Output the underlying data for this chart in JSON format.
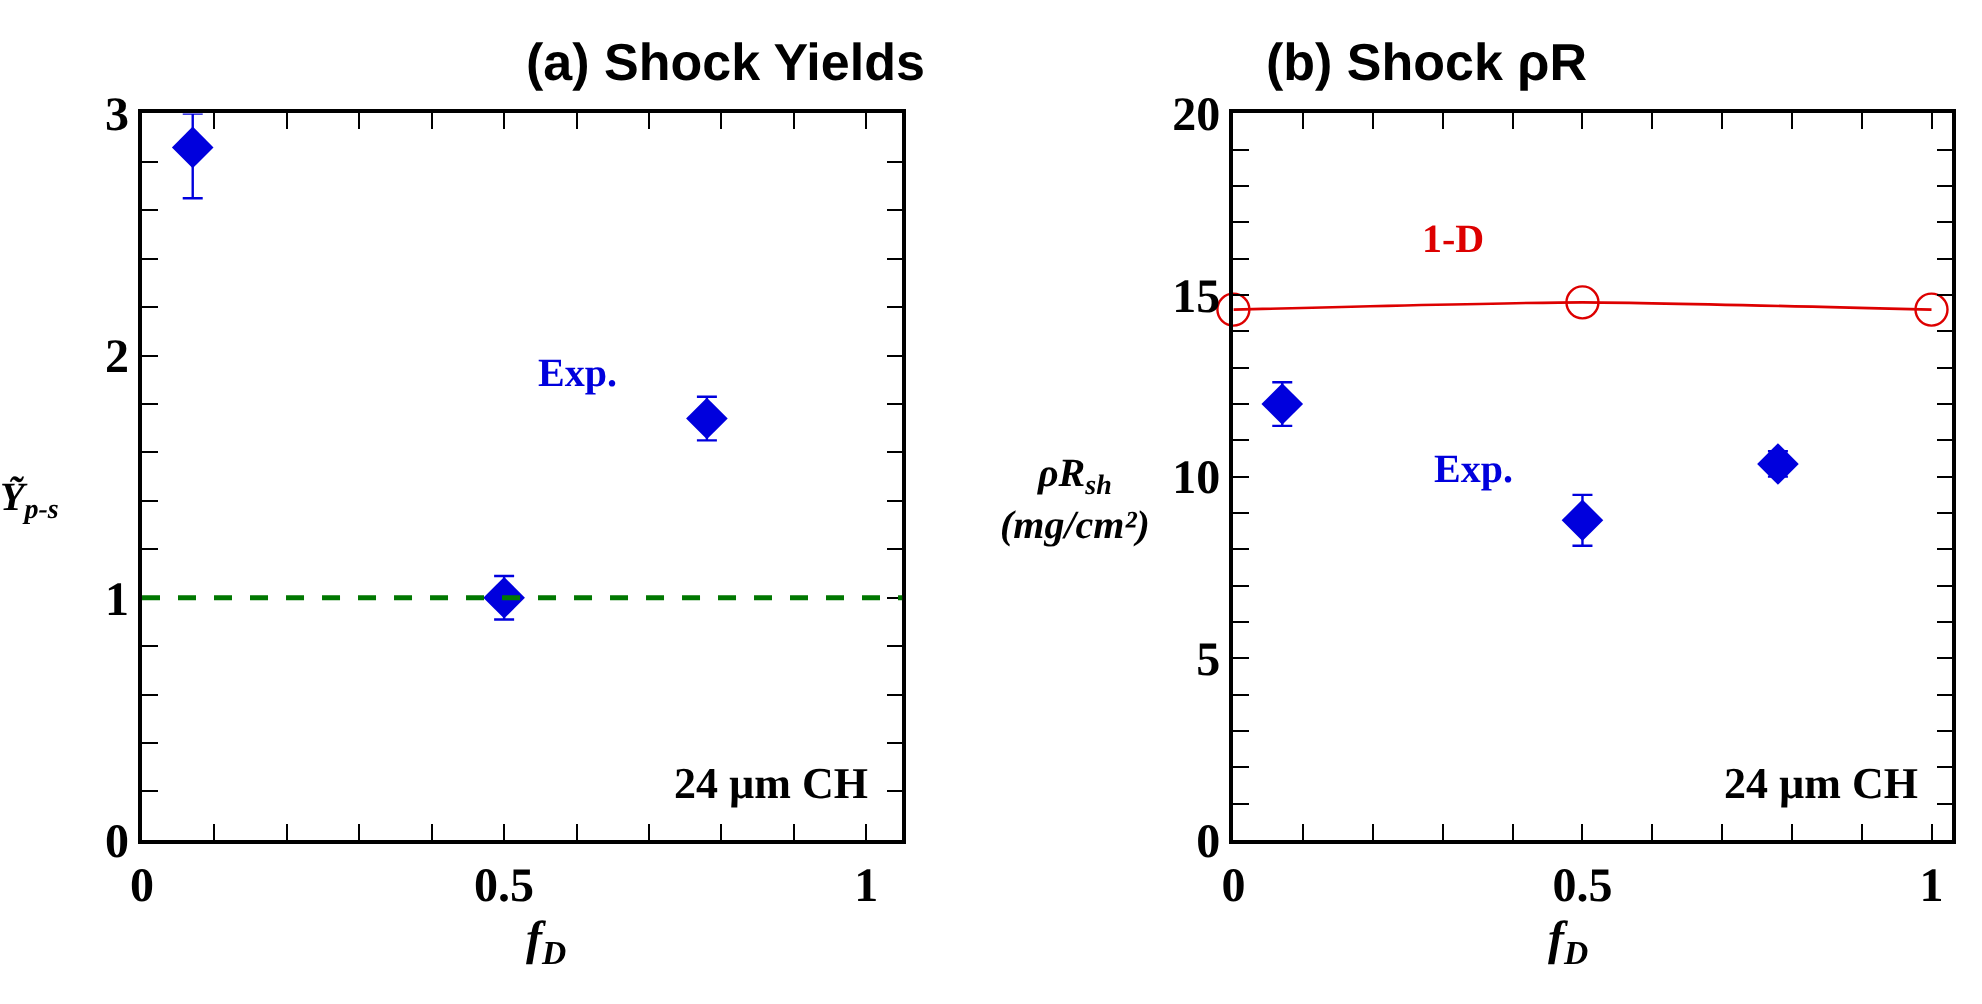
{
  "chart_data": [
    {
      "type": "scatter",
      "title": "(a) Shock Yields",
      "xlabel": "f$_{D}$",
      "ylabel": "Ỹ$_{p-s}$",
      "xlim": [
        0,
        1.05
      ],
      "xticks": [
        0,
        {
          "value": 0.1,
          "label": null
        },
        {
          "value": 0.2,
          "label": null
        },
        {
          "value": 0.3,
          "label": null
        },
        {
          "value": 0.4,
          "label": null
        },
        0.5,
        {
          "value": 0.6,
          "label": null
        },
        {
          "value": 0.7,
          "label": null
        },
        {
          "value": 0.8,
          "label": null
        },
        {
          "value": 0.9,
          "label": null
        },
        1
      ],
      "ylim": [
        0,
        3
      ],
      "yticks": [
        0,
        {
          "value": 0.2,
          "label": null
        },
        {
          "value": 0.4,
          "label": null
        },
        {
          "value": 0.6,
          "label": null
        },
        {
          "value": 0.8,
          "label": null
        },
        1,
        {
          "value": 1.2,
          "label": null
        },
        {
          "value": 1.4,
          "label": null
        },
        {
          "value": 1.6,
          "label": null
        },
        {
          "value": 1.8,
          "label": null
        },
        2,
        {
          "value": 2.2,
          "label": null
        },
        {
          "value": 2.4,
          "label": null
        },
        {
          "value": 2.6,
          "label": null
        },
        {
          "value": 2.8,
          "label": null
        },
        3
      ],
      "series": [
        {
          "name": "Exp.",
          "color": "#0000dd",
          "marker": "diamond",
          "x": [
            0.07,
            0.5,
            0.78
          ],
          "values": [
            2.86,
            1.0,
            1.74
          ],
          "errors": [
            [
              2.65,
              3.0
            ],
            [
              0.91,
              1.09
            ],
            [
              1.65,
              1.83
            ]
          ]
        }
      ],
      "ref_lines": [
        {
          "axis": "y",
          "value": 1,
          "color": "#007700",
          "line_style": "dashed"
        }
      ],
      "annotations": [
        "24 µm CH"
      ]
    },
    {
      "type": "scatter",
      "title": "(b) Shock ρR",
      "xlabel": "f$_{D}$",
      "ylabel": "ρR$_{sh}$\n(mg/cm²)",
      "xlim": [
        0,
        1.03
      ],
      "xticks": [
        0,
        {
          "value": 0.1,
          "label": null
        },
        {
          "value": 0.2,
          "label": null
        },
        {
          "value": 0.3,
          "label": null
        },
        {
          "value": 0.4,
          "label": null
        },
        0.5,
        {
          "value": 0.6,
          "label": null
        },
        {
          "value": 0.7,
          "label": null
        },
        {
          "value": 0.8,
          "label": null
        },
        {
          "value": 0.9,
          "label": null
        },
        1
      ],
      "ylim": [
        0,
        20
      ],
      "yticks": [
        0,
        {
          "value": 1,
          "label": null
        },
        {
          "value": 2,
          "label": null
        },
        {
          "value": 3,
          "label": null
        },
        {
          "value": 4,
          "label": null
        },
        5,
        {
          "value": 6,
          "label": null
        },
        {
          "value": 7,
          "label": null
        },
        {
          "value": 8,
          "label": null
        },
        {
          "value": 9,
          "label": null
        },
        10,
        {
          "value": 11,
          "label": null
        },
        {
          "value": 12,
          "label": null
        },
        {
          "value": 13,
          "label": null
        },
        {
          "value": 14,
          "label": null
        },
        15,
        {
          "value": 16,
          "label": null
        },
        {
          "value": 17,
          "label": null
        },
        {
          "value": 18,
          "label": null
        },
        {
          "value": 19,
          "label": null
        },
        20
      ],
      "series": [
        {
          "name": "1-D",
          "color": "#dd0000",
          "type": "line",
          "marker": "circle",
          "x": [
            0,
            0.5,
            1
          ],
          "values": [
            14.6,
            14.8,
            14.6
          ]
        },
        {
          "name": "Exp.",
          "color": "#0000dd",
          "marker": "diamond",
          "x": [
            0.07,
            0.5,
            0.78
          ],
          "values": [
            12.0,
            8.8,
            10.35
          ],
          "errors": [
            [
              11.4,
              12.6
            ],
            [
              8.1,
              9.5
            ],
            [
              10.0,
              10.7
            ]
          ]
        }
      ],
      "annotations": [
        "24 µm CH"
      ]
    }
  ]
}
